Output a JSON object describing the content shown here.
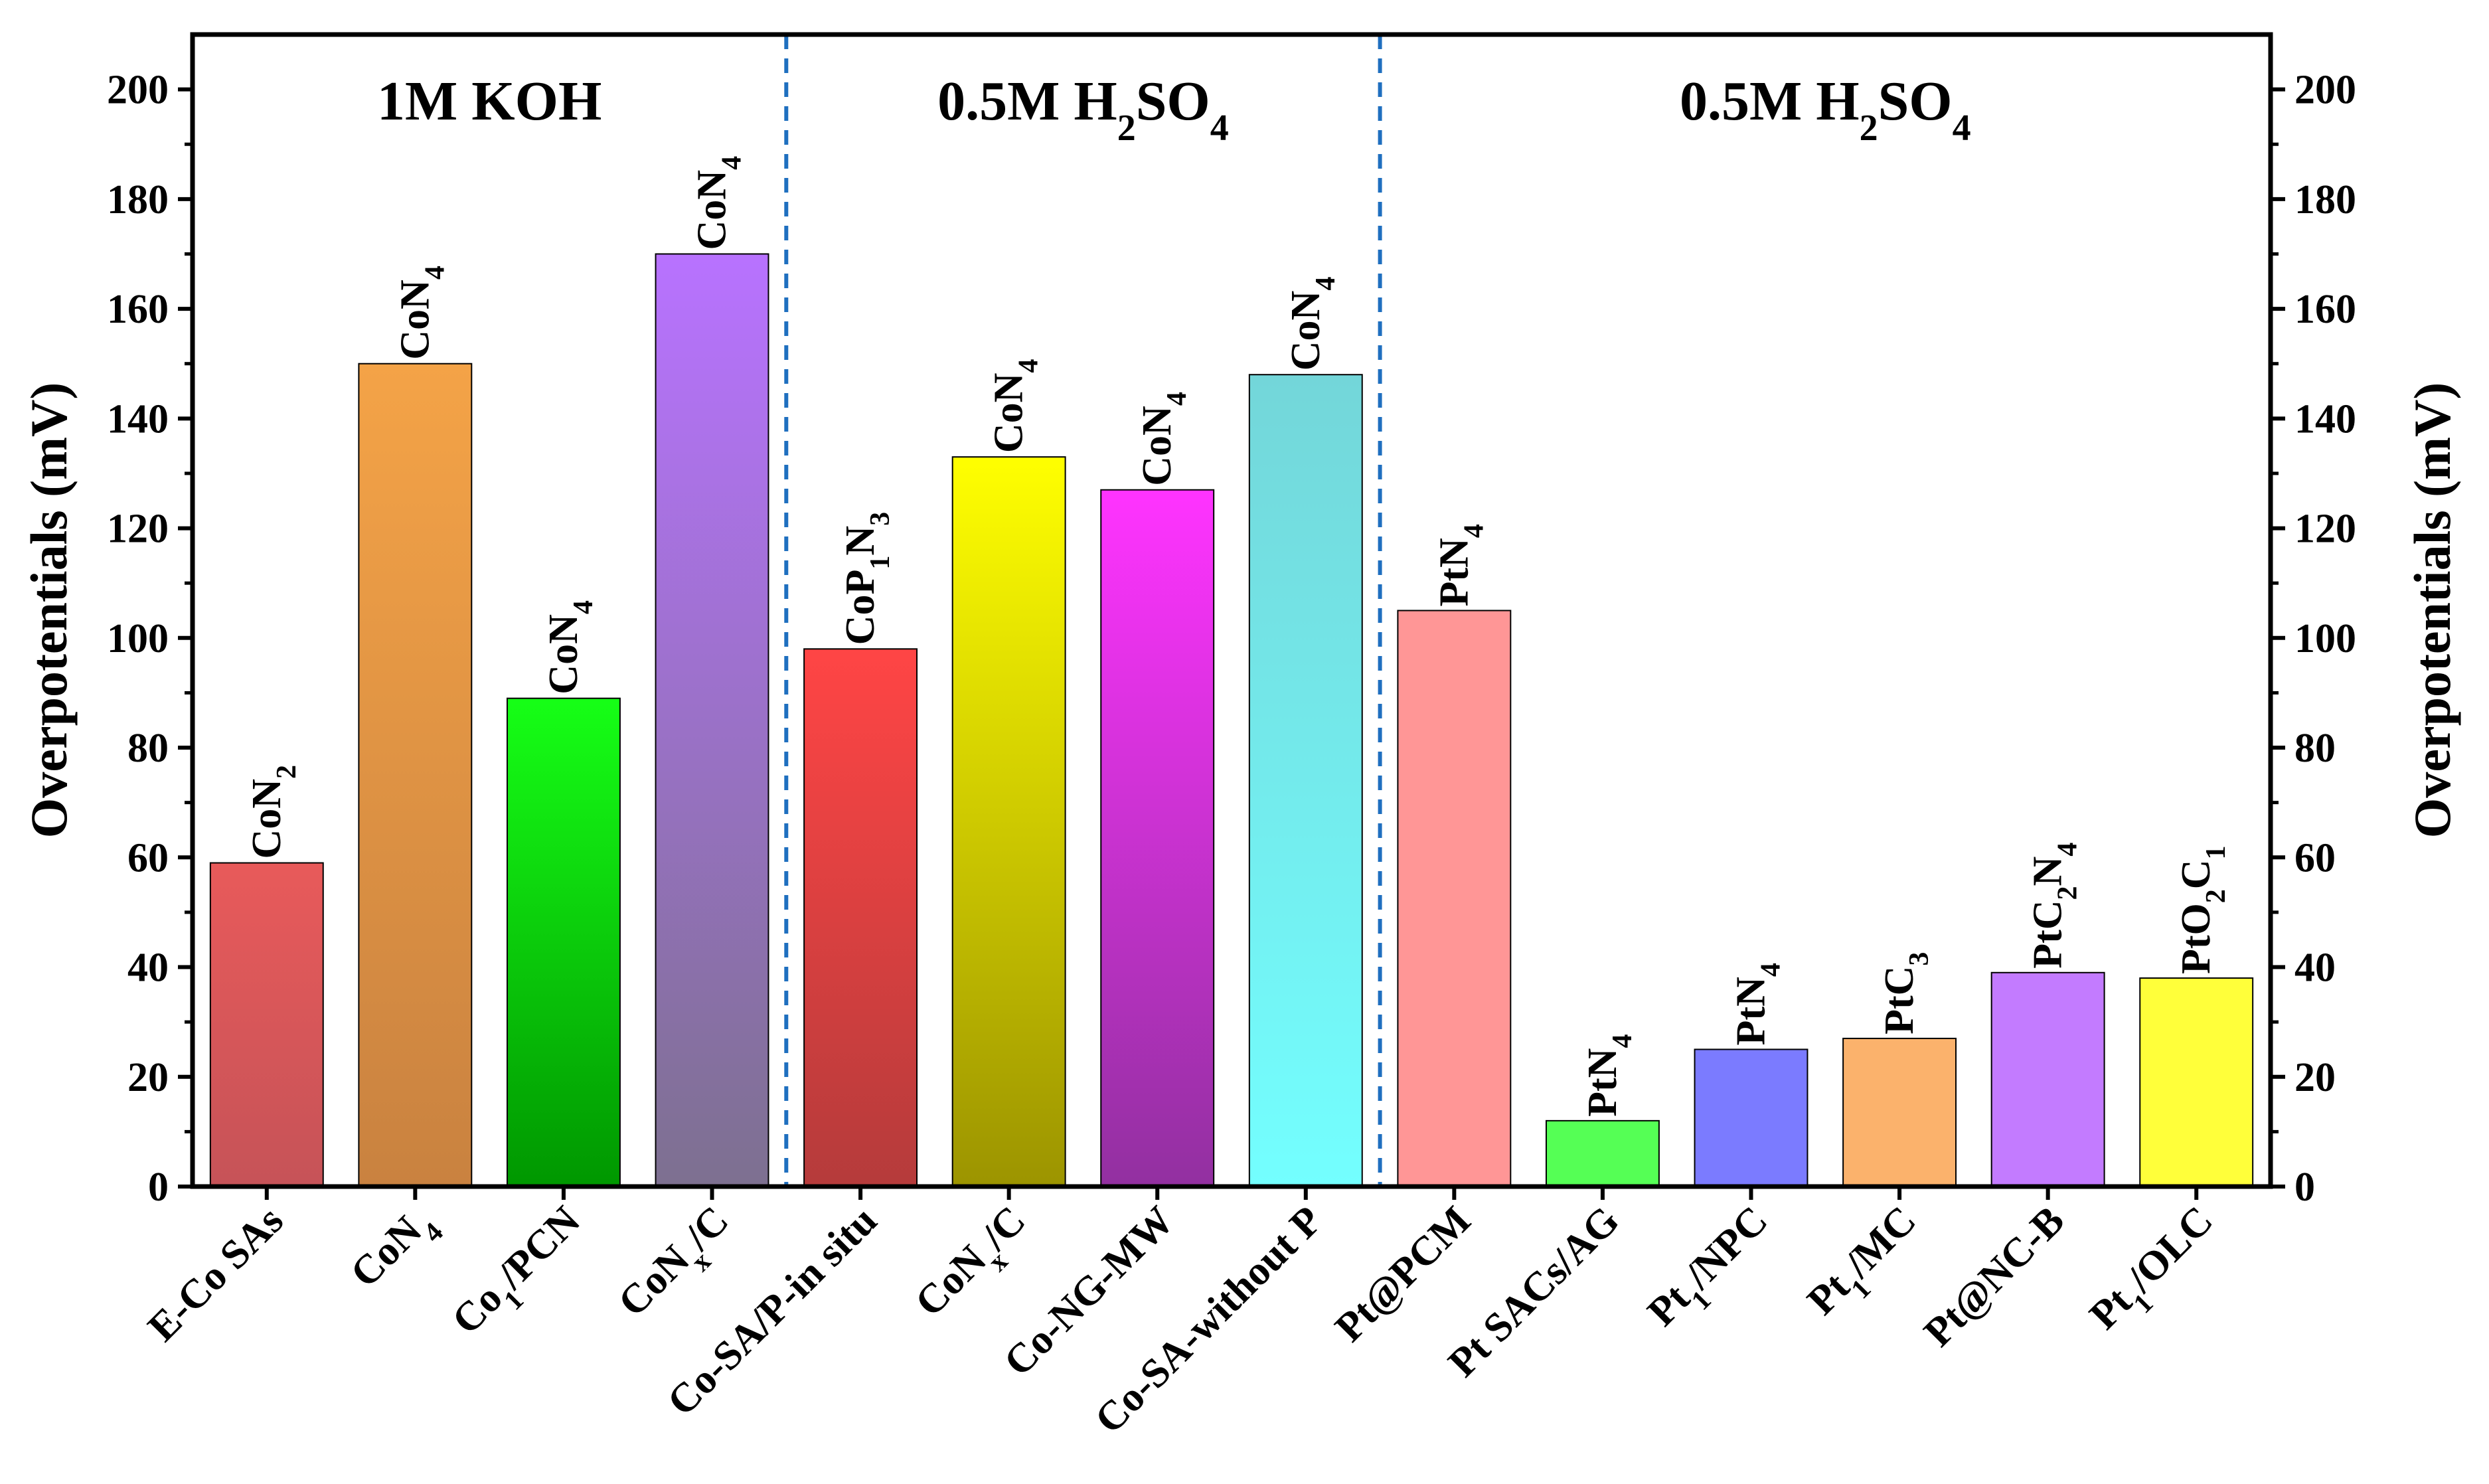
{
  "chart_data": {
    "type": "bar",
    "ylabel_left": "Overpotentials (mV)",
    "ylabel_right": "Overpotentials (mV)",
    "ylim": [
      0,
      210
    ],
    "yticks": [
      0,
      20,
      40,
      60,
      80,
      100,
      120,
      140,
      160,
      180,
      200
    ],
    "ytick_labels": [
      "0",
      "20",
      "40",
      "60",
      "80",
      "100",
      "120",
      "140",
      "160",
      "180",
      "200"
    ],
    "grid": false,
    "groups": [
      {
        "title": "1M KOH",
        "title_parts": [
          {
            "t": "1M KOH"
          }
        ],
        "start": 0,
        "end": 3
      },
      {
        "title": "0.5M H2SO4",
        "title_parts": [
          {
            "t": "0.5M H"
          },
          {
            "t": "2",
            "sub": true
          },
          {
            "t": "SO"
          },
          {
            "t": "4",
            "sub": true
          }
        ],
        "start": 4,
        "end": 7
      },
      {
        "title": "0.5M H2SO4",
        "title_parts": [
          {
            "t": "0.5M H"
          },
          {
            "t": "2",
            "sub": true
          },
          {
            "t": "SO"
          },
          {
            "t": "4",
            "sub": true
          }
        ],
        "start": 8,
        "end": 13
      }
    ],
    "categories": [
      "E-Co SAs",
      "CoN4",
      "Co1/PCN",
      "CoNx/C",
      "Co-SA/P-in situ",
      "CoNx/C",
      "Co-NG-MW",
      "Co-SA-without P",
      "Pt@PCM",
      "Pt SACs/AG",
      "Pt1/NPC",
      "Pt1/MC",
      "Pt@NC-B",
      "Pt1/OLC"
    ],
    "category_parts": [
      [
        {
          "t": "E-Co SAs"
        }
      ],
      [
        {
          "t": "CoN"
        },
        {
          "t": "4",
          "sub": true
        }
      ],
      [
        {
          "t": "Co"
        },
        {
          "t": "1",
          "sub": true
        },
        {
          "t": "/PCN"
        }
      ],
      [
        {
          "t": "CoN"
        },
        {
          "t": "x",
          "sub": true
        },
        {
          "t": "/C"
        }
      ],
      [
        {
          "t": "Co-SA/P-in situ"
        }
      ],
      [
        {
          "t": "CoN"
        },
        {
          "t": "x",
          "sub": true
        },
        {
          "t": "/C"
        }
      ],
      [
        {
          "t": "Co-NG-MW"
        }
      ],
      [
        {
          "t": "Co-SA-without P"
        }
      ],
      [
        {
          "t": "Pt@PCM"
        }
      ],
      [
        {
          "t": "Pt SACs/AG"
        }
      ],
      [
        {
          "t": "Pt"
        },
        {
          "t": "1",
          "sub": true
        },
        {
          "t": "/NPC"
        }
      ],
      [
        {
          "t": "Pt"
        },
        {
          "t": "1",
          "sub": true
        },
        {
          "t": "/MC"
        }
      ],
      [
        {
          "t": "Pt@NC-B"
        }
      ],
      [
        {
          "t": "Pt"
        },
        {
          "t": "1",
          "sub": true
        },
        {
          "t": "/OLC"
        }
      ]
    ],
    "values": [
      59,
      150,
      89,
      170,
      98,
      133,
      127,
      148,
      105,
      12,
      25,
      27,
      39,
      38
    ],
    "bar_labels": [
      "CoN2",
      "CoN4",
      "CoN4",
      "CoN4",
      "CoP1N3",
      "CoN4",
      "CoN4",
      "CoN4",
      "PtN4",
      "PtN4",
      "PtN4",
      "PtC3",
      "PtC2N4",
      "PtO2C1"
    ],
    "bar_label_parts": [
      [
        {
          "t": "CoN"
        },
        {
          "t": "2",
          "sub": true
        }
      ],
      [
        {
          "t": "CoN"
        },
        {
          "t": "4",
          "sub": true
        }
      ],
      [
        {
          "t": "CoN"
        },
        {
          "t": "4",
          "sub": true
        }
      ],
      [
        {
          "t": "CoN"
        },
        {
          "t": "4",
          "sub": true
        }
      ],
      [
        {
          "t": "CoP"
        },
        {
          "t": "1",
          "sub": true
        },
        {
          "t": "N"
        },
        {
          "t": "3",
          "sub": true
        }
      ],
      [
        {
          "t": "CoN"
        },
        {
          "t": "4",
          "sub": true
        }
      ],
      [
        {
          "t": "CoN"
        },
        {
          "t": "4",
          "sub": true
        }
      ],
      [
        {
          "t": "CoN"
        },
        {
          "t": "4",
          "sub": true
        }
      ],
      [
        {
          "t": "PtN"
        },
        {
          "t": "4",
          "sub": true
        }
      ],
      [
        {
          "t": "PtN"
        },
        {
          "t": "4",
          "sub": true
        }
      ],
      [
        {
          "t": "PtN"
        },
        {
          "t": "4",
          "sub": true
        }
      ],
      [
        {
          "t": "PtC"
        },
        {
          "t": "3",
          "sub": true
        }
      ],
      [
        {
          "t": "PtC"
        },
        {
          "t": "2",
          "sub": true
        },
        {
          "t": "N"
        },
        {
          "t": "4",
          "sub": true
        }
      ],
      [
        {
          "t": "PtO"
        },
        {
          "t": "2",
          "sub": true
        },
        {
          "t": "C"
        },
        {
          "t": "1",
          "sub": true
        }
      ]
    ],
    "bar_colors": [
      [
        "#e85a5a",
        "#c65358"
      ],
      [
        "#f4a347",
        "#c98240"
      ],
      [
        "#16ff16",
        "#009700"
      ],
      [
        "#b872ff",
        "#7d7090"
      ],
      [
        "#ff4545",
        "#b53b3b"
      ],
      [
        "#ffff00",
        "#9c9400"
      ],
      [
        "#ff33ff",
        "#9230a0"
      ],
      [
        "#73d6d9",
        "#73ffff"
      ],
      [
        "#ff9696",
        "#ff9696"
      ],
      [
        "#55ff55",
        "#55ff55"
      ],
      [
        "#7b7bff",
        "#7b7bff"
      ],
      [
        "#fbb26c",
        "#fbb26c"
      ],
      [
        "#c37bff",
        "#c37bff"
      ],
      [
        "#ffff3a",
        "#ffff3a"
      ]
    ],
    "separator_color": "#1f6fbf"
  }
}
